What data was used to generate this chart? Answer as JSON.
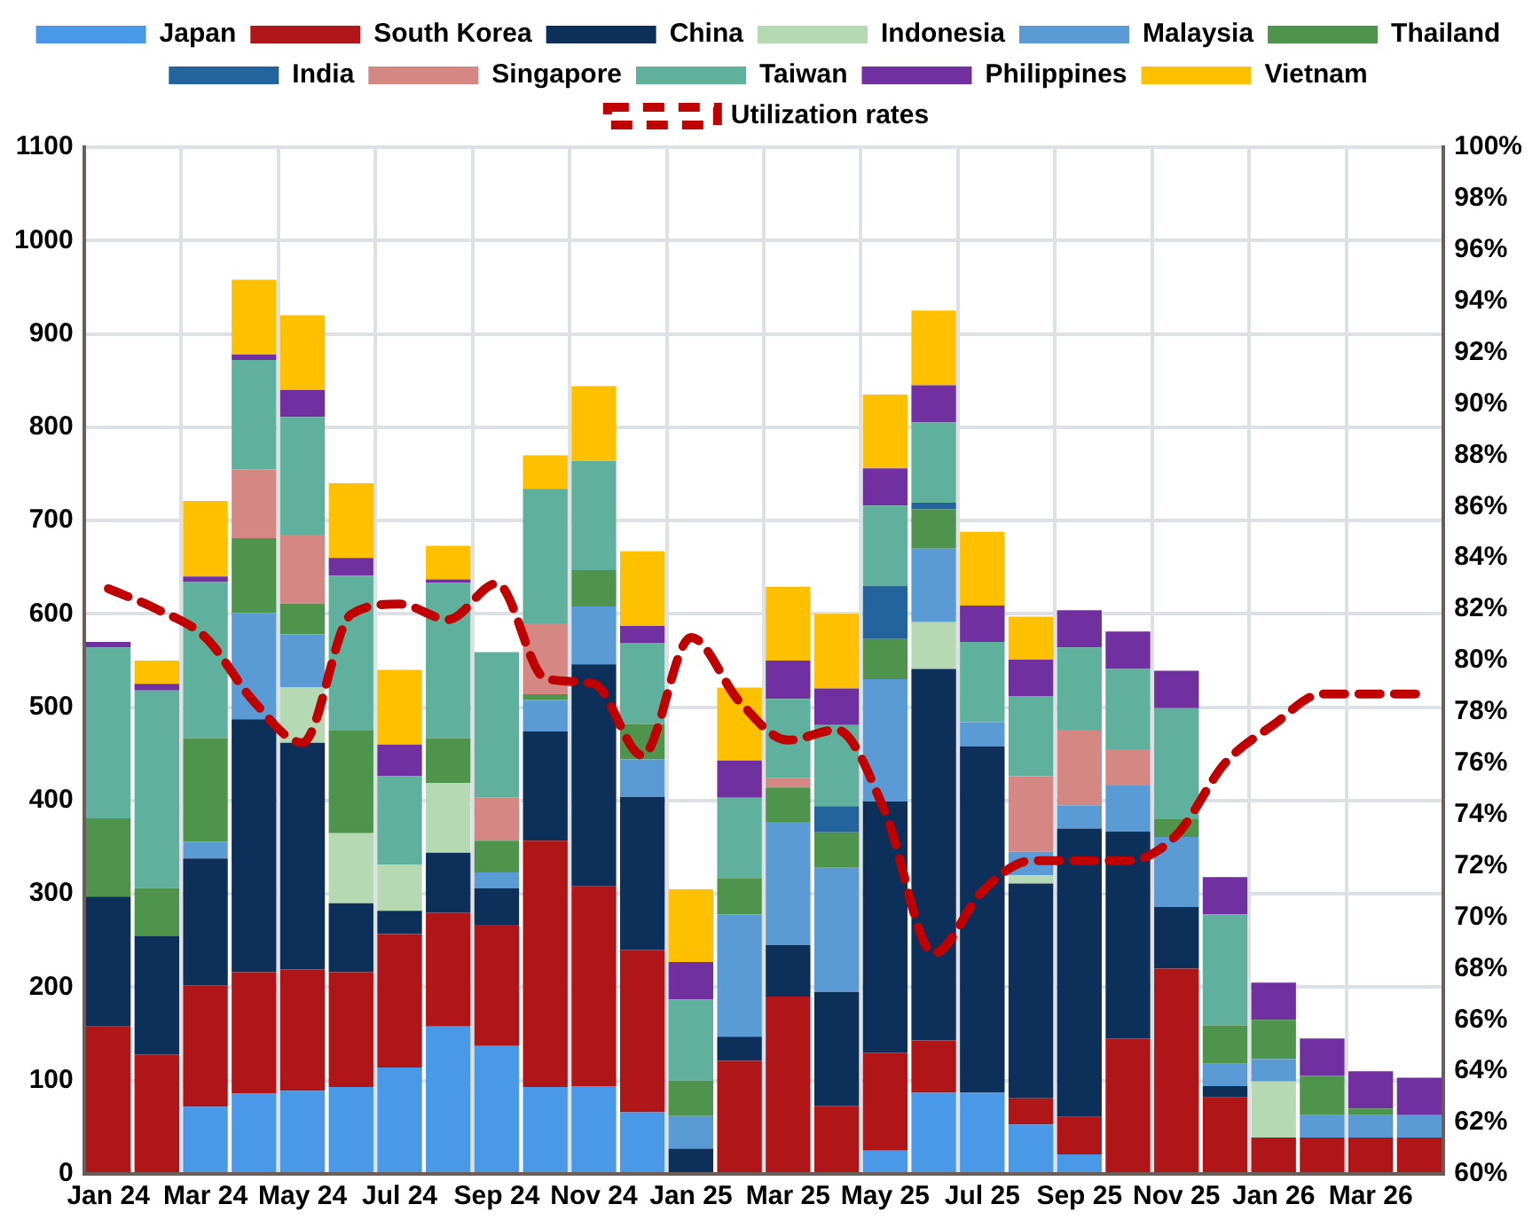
{
  "chart_data": {
    "type": "bar",
    "stacked": true,
    "grid": true,
    "legend": "top",
    "categories": [
      "Jan 24",
      null,
      "Mar 24",
      null,
      "May 24",
      null,
      "Jul 24",
      null,
      "Sep 24",
      null,
      "Nov 24",
      null,
      "Jan 25",
      null,
      "Mar 25",
      null,
      "May 25",
      null,
      "Jul 25",
      null,
      "Sep 25",
      null,
      "Nov 25",
      null,
      "Jan 26",
      null,
      "Mar 26",
      null
    ],
    "ylim": [
      0,
      1100
    ],
    "yticks": [
      0,
      100,
      200,
      300,
      400,
      500,
      600,
      700,
      800,
      900,
      1000,
      1100
    ],
    "y2lim": [
      60,
      100
    ],
    "y2ticks": [
      {
        "value": 60,
        "label": "60%"
      },
      {
        "value": 62,
        "label": "62%"
      },
      {
        "value": 64,
        "label": "64%"
      },
      {
        "value": 66,
        "label": "66%"
      },
      {
        "value": 68,
        "label": "68%"
      },
      {
        "value": 70,
        "label": "70%"
      },
      {
        "value": 72,
        "label": "72%"
      },
      {
        "value": 74,
        "label": "74%"
      },
      {
        "value": 76,
        "label": "76%"
      },
      {
        "value": 78,
        "label": "78%"
      },
      {
        "value": 80,
        "label": "80%"
      },
      {
        "value": 82,
        "label": "82%"
      },
      {
        "value": 84,
        "label": "84%"
      },
      {
        "value": 86,
        "label": "86%"
      },
      {
        "value": 88,
        "label": "88%"
      },
      {
        "value": 90,
        "label": "90%"
      },
      {
        "value": 92,
        "label": "92%"
      },
      {
        "value": 94,
        "label": "94%"
      },
      {
        "value": 96,
        "label": "96%"
      },
      {
        "value": 98,
        "label": "98%"
      },
      {
        "value": 100,
        "label": "100%"
      }
    ],
    "series": [
      {
        "name": "Japan",
        "color": "#4a98e8",
        "values": [
          0,
          0,
          72,
          86,
          89,
          93,
          114,
          158,
          137,
          93,
          94,
          66,
          0,
          0,
          0,
          0,
          25,
          87,
          87,
          53,
          21,
          0,
          0,
          0,
          0,
          0,
          0,
          0
        ]
      },
      {
        "name": "South Korea",
        "color": "#b01517",
        "values": [
          158,
          128,
          130,
          130,
          130,
          123,
          143,
          122,
          130,
          264,
          214,
          174,
          0,
          121,
          190,
          73,
          105,
          56,
          0,
          28,
          40,
          145,
          220,
          82,
          39,
          39,
          39,
          39
        ]
      },
      {
        "name": "China",
        "color": "#0c3059",
        "values": [
          139,
          127,
          136,
          271,
          243,
          74,
          25,
          64,
          39,
          117,
          238,
          164,
          27,
          26,
          55,
          122,
          269,
          398,
          371,
          230,
          309,
          222,
          66,
          12,
          0,
          0,
          0,
          0
        ]
      },
      {
        "name": "Indonesia",
        "color": "#b5d9b3",
        "values": [
          0,
          0,
          0,
          0,
          59,
          75,
          49,
          75,
          0,
          0,
          0,
          0,
          0,
          0,
          0,
          0,
          0,
          50,
          0,
          9,
          0,
          0,
          0,
          0,
          60,
          0,
          0,
          0
        ]
      },
      {
        "name": "Malaysia",
        "color": "#5b9bd5",
        "values": [
          0,
          0,
          18,
          114,
          57,
          0,
          0,
          0,
          17,
          34,
          62,
          40,
          35,
          131,
          132,
          133,
          131,
          79,
          26,
          25,
          25,
          49,
          75,
          24,
          24,
          24,
          24,
          24
        ]
      },
      {
        "name": "Thailand",
        "color": "#4e944d",
        "values": [
          84,
          51,
          111,
          80,
          33,
          110,
          0,
          48,
          34,
          6,
          39,
          38,
          38,
          39,
          37,
          38,
          43,
          42,
          0,
          0,
          0,
          0,
          19,
          41,
          42,
          42,
          7,
          0
        ]
      },
      {
        "name": "India",
        "color": "#23649e",
        "values": [
          0,
          0,
          0,
          0,
          0,
          0,
          0,
          0,
          0,
          0,
          0,
          0,
          0,
          0,
          0,
          28,
          57,
          7,
          0,
          0,
          0,
          0,
          0,
          0,
          0,
          0,
          0,
          0
        ]
      },
      {
        "name": "Singapore",
        "color": "#d48783",
        "values": [
          0,
          0,
          0,
          74,
          74,
          0,
          0,
          0,
          46,
          76,
          0,
          0,
          0,
          0,
          10,
          0,
          0,
          0,
          0,
          81,
          81,
          39,
          0,
          0,
          0,
          0,
          0,
          0
        ]
      },
      {
        "name": "Taiwan",
        "color": "#5fb09c",
        "values": [
          183,
          212,
          167,
          117,
          126,
          166,
          95,
          166,
          156,
          144,
          117,
          87,
          87,
          86,
          85,
          87,
          86,
          86,
          86,
          86,
          88,
          86,
          119,
          119,
          0,
          0,
          0,
          0
        ]
      },
      {
        "name": "Philippines",
        "color": "#7030a0",
        "values": [
          6,
          7,
          6,
          6,
          29,
          19,
          34,
          4,
          0,
          0,
          0,
          18,
          40,
          40,
          41,
          39,
          40,
          40,
          39,
          39,
          40,
          40,
          40,
          40,
          40,
          40,
          40,
          40
        ]
      },
      {
        "name": "Vietnam",
        "color": "#ffc000",
        "values": [
          0,
          25,
          81,
          80,
          80,
          80,
          80,
          36,
          0,
          36,
          80,
          80,
          78,
          78,
          79,
          80,
          79,
          80,
          79,
          46,
          0,
          0,
          0,
          0,
          0,
          0,
          0,
          0
        ]
      },
      {
        "name": "Utilization rates",
        "type": "line",
        "axis": "y2",
        "color": "#c00000",
        "line_style": "dashed",
        "marker": "none",
        "values": [
          82.8,
          82.0,
          80.9,
          78.4,
          76.8,
          81.8,
          82.2,
          81.6,
          83.0,
          79.3,
          79.1,
          76.3,
          80.9,
          78.4,
          76.9,
          77.3,
          74.1,
          68.6,
          71.0,
          72.2,
          72.2,
          72.2,
          73.2,
          76.0,
          77.5,
          78.7,
          78.7,
          78.7
        ]
      }
    ]
  }
}
